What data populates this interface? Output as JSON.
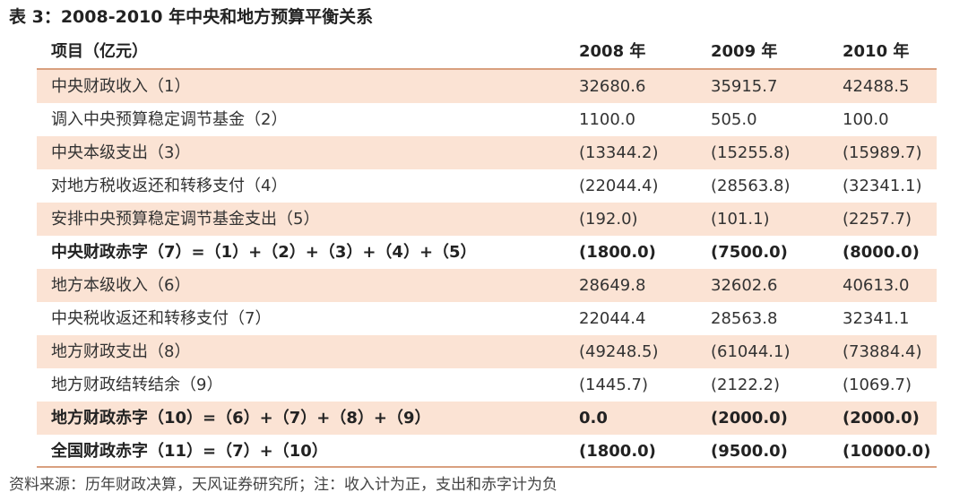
{
  "caption": "表 3：2008-2010 年中央和地方预算平衡关系",
  "header": [
    "项目（亿元）",
    "2008 年",
    "2009 年",
    "2010 年"
  ],
  "rows": [
    {
      "label": "中央财政收入（1）",
      "v2008": "32680.6",
      "v2009": "35915.7",
      "v2010": "42488.5",
      "shaded": true,
      "bold": false
    },
    {
      "label": "调入中央预算稳定调节基金（2）",
      "v2008": "1100.0",
      "v2009": "505.0",
      "v2010": "100.0",
      "shaded": false,
      "bold": false
    },
    {
      "label": "中央本级支出（3）",
      "v2008": "(13344.2)",
      "v2009": "(15255.8)",
      "v2010": "(15989.7)",
      "shaded": true,
      "bold": false
    },
    {
      "label": "对地方税收返还和转移支付（4）",
      "v2008": "(22044.4)",
      "v2009": "(28563.8)",
      "v2010": "(32341.1)",
      "shaded": false,
      "bold": false
    },
    {
      "label": "安排中央预算稳定调节基金支出（5）",
      "v2008": "(192.0)",
      "v2009": "(101.1)",
      "v2010": "(2257.7)",
      "shaded": true,
      "bold": false
    },
    {
      "label": "中央财政赤字（7）=（1）+（2）+（3）+（4）+（5）",
      "v2008": "(1800.0)",
      "v2009": "(7500.0)",
      "v2010": "(8000.0)",
      "shaded": false,
      "bold": true
    },
    {
      "label": "地方本级收入（6）",
      "v2008": "28649.8",
      "v2009": "32602.6",
      "v2010": "40613.0",
      "shaded": true,
      "bold": false
    },
    {
      "label": "中央税收返还和转移支付（7）",
      "v2008": "22044.4",
      "v2009": "28563.8",
      "v2010": "32341.1",
      "shaded": false,
      "bold": false
    },
    {
      "label": "地方财政支出（8）",
      "v2008": "(49248.5)",
      "v2009": "(61044.1)",
      "v2010": "(73884.4)",
      "shaded": true,
      "bold": false
    },
    {
      "label": "地方财政结转结余（9）",
      "v2008": "(1445.7)",
      "v2009": "(2122.2)",
      "v2010": "(1069.7)",
      "shaded": false,
      "bold": false
    },
    {
      "label": "地方财政赤字（10）=（6）+（7）+（8）+（9）",
      "v2008": "0.0",
      "v2009": "(2000.0)",
      "v2010": "(2000.0)",
      "shaded": true,
      "bold": true
    },
    {
      "label": "全国财政赤字（11）=（7）+（10）",
      "v2008": "(1800.0)",
      "v2009": "(9500.0)",
      "v2010": "(10000.0)",
      "shaded": false,
      "bold": true
    }
  ],
  "note": "资料来源：历年财政决算，天风证券研究所；注：收入计为正，支出和赤字计为负"
}
